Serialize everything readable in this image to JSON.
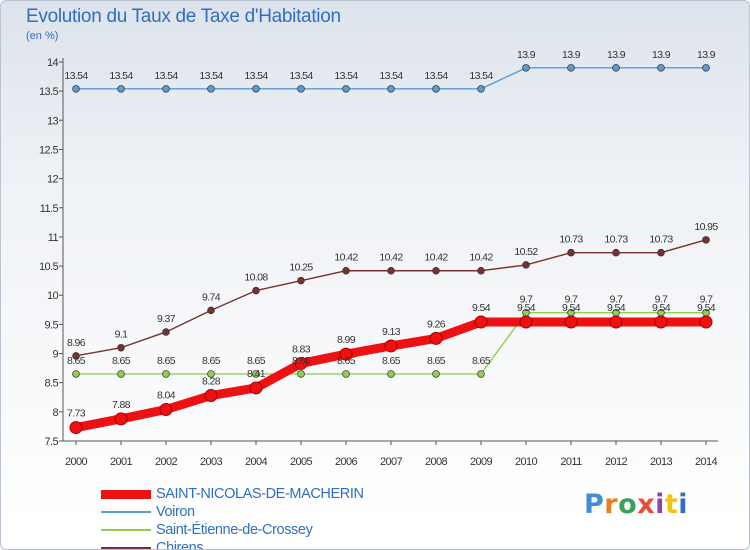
{
  "title": "Evolution du Taux de Taxe d'Habitation",
  "subtitle": "(en %)",
  "logo_text": "Proxiti",
  "chart_data": {
    "type": "line",
    "title": "Evolution du Taux de Taxe d'Habitation",
    "ylabel": "(en %)",
    "ylim": [
      7.5,
      14
    ],
    "yticks": [
      "7.5",
      "8",
      "8.5",
      "9",
      "9.5",
      "10",
      "10.5",
      "11",
      "11.5",
      "12",
      "12.5",
      "13",
      "13.5",
      "14"
    ],
    "x": [
      "2000",
      "2001",
      "2002",
      "2003",
      "2004",
      "2005",
      "2006",
      "2007",
      "2008",
      "2009",
      "2010",
      "2011",
      "2012",
      "2013",
      "2014"
    ],
    "grid": false,
    "legend_position": "bottom-left",
    "series": [
      {
        "name": "SAINT-NICOLAS-DE-MACHERIN",
        "color": "#ee1111",
        "values": [
          7.73,
          7.88,
          8.04,
          8.28,
          8.41,
          8.83,
          8.99,
          9.13,
          9.26,
          9.54,
          9.54,
          9.54,
          9.54,
          9.54,
          9.54
        ]
      },
      {
        "name": "Voiron",
        "color": "#5b9bd5",
        "values": [
          13.54,
          13.54,
          13.54,
          13.54,
          13.54,
          13.54,
          13.54,
          13.54,
          13.54,
          13.54,
          13.9,
          13.9,
          13.9,
          13.9,
          13.9
        ]
      },
      {
        "name": "Saint-Étienne-de-Crossey",
        "color": "#8fd14f",
        "values": [
          8.65,
          8.65,
          8.65,
          8.65,
          8.65,
          8.65,
          8.65,
          8.65,
          8.65,
          8.65,
          9.7,
          9.7,
          9.7,
          9.7,
          9.7
        ]
      },
      {
        "name": "Chirens",
        "color": "#7b3030",
        "values": [
          8.96,
          9.1,
          9.37,
          9.74,
          10.08,
          10.25,
          10.42,
          10.42,
          10.42,
          10.42,
          10.52,
          10.73,
          10.73,
          10.73,
          10.95
        ]
      }
    ]
  }
}
